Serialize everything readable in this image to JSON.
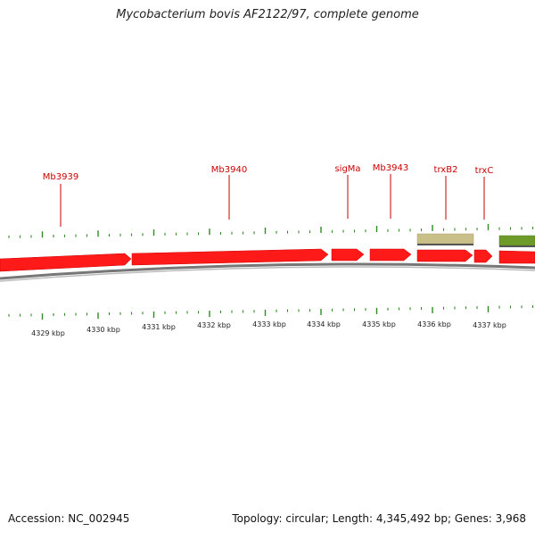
{
  "title": "Mycobacterium bovis AF2122/97, complete genome",
  "footer": {
    "accession": "Accession: NC_002945",
    "summary": "Topology: circular; Length: 4,345,492 bp; Genes: 3,968"
  },
  "axis": {
    "unit": "kbp",
    "tick_labels": [
      "4329 kbp",
      "4330 kbp",
      "4331 kbp",
      "4332 kbp",
      "4333 kbp",
      "4334 kbp",
      "4335 kbp",
      "4336 kbp",
      "4337 kbp"
    ]
  },
  "gene_labels": [
    "Mb3939",
    "Mb3940",
    "sigMa",
    "Mb3943",
    "trxB2",
    "trxC"
  ],
  "colors": {
    "forward_gene": "#ff1a1a",
    "tick": "#2e8b22",
    "backbone": "#888888",
    "feature_tan": "#c8c088",
    "feature_olive": "#6e9a2a",
    "label": "#cc0000"
  }
}
